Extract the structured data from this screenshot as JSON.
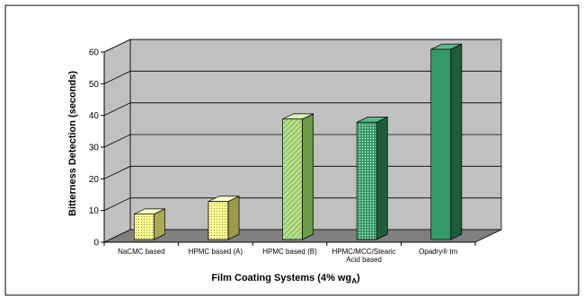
{
  "chart_data": {
    "type": "bar",
    "title": "",
    "xlabel": "Film Coating Systems (4% wg",
    "xlabel_subscript": "A",
    "xlabel_suffix": ")",
    "ylabel": "Bitterness Detection (seconds)",
    "categories": [
      [
        "NaCMC based"
      ],
      [
        "HPMC based (A)"
      ],
      [
        "HPMC based (B)"
      ],
      [
        "HPMC/MCC/Stearic",
        "Acid based"
      ],
      [
        "Opadry® tm"
      ]
    ],
    "values": [
      8,
      12,
      38,
      37,
      60
    ],
    "ylim": [
      0,
      60
    ],
    "yticks": [
      0,
      10,
      20,
      30,
      40,
      50,
      60
    ],
    "grid": true,
    "legend": "none",
    "colors": {
      "wall": "#c0c0c0",
      "floor": "#808080",
      "bars": [
        {
          "front": "#ffff99",
          "side": "#aaaa55",
          "top": "#ffffcc"
        },
        {
          "front": "#ffff99",
          "side": "#9a9a4a",
          "top": "#ffffcc"
        },
        {
          "front": "#b6e28a",
          "side": "#6c9a48",
          "top": "#d6f2b8"
        },
        {
          "front": "#339966",
          "side": "#1e5c3c",
          "top": "#5cb88a"
        },
        {
          "front": "#339966",
          "side": "#1e5c3c",
          "top": "#5cb88a"
        }
      ]
    }
  }
}
